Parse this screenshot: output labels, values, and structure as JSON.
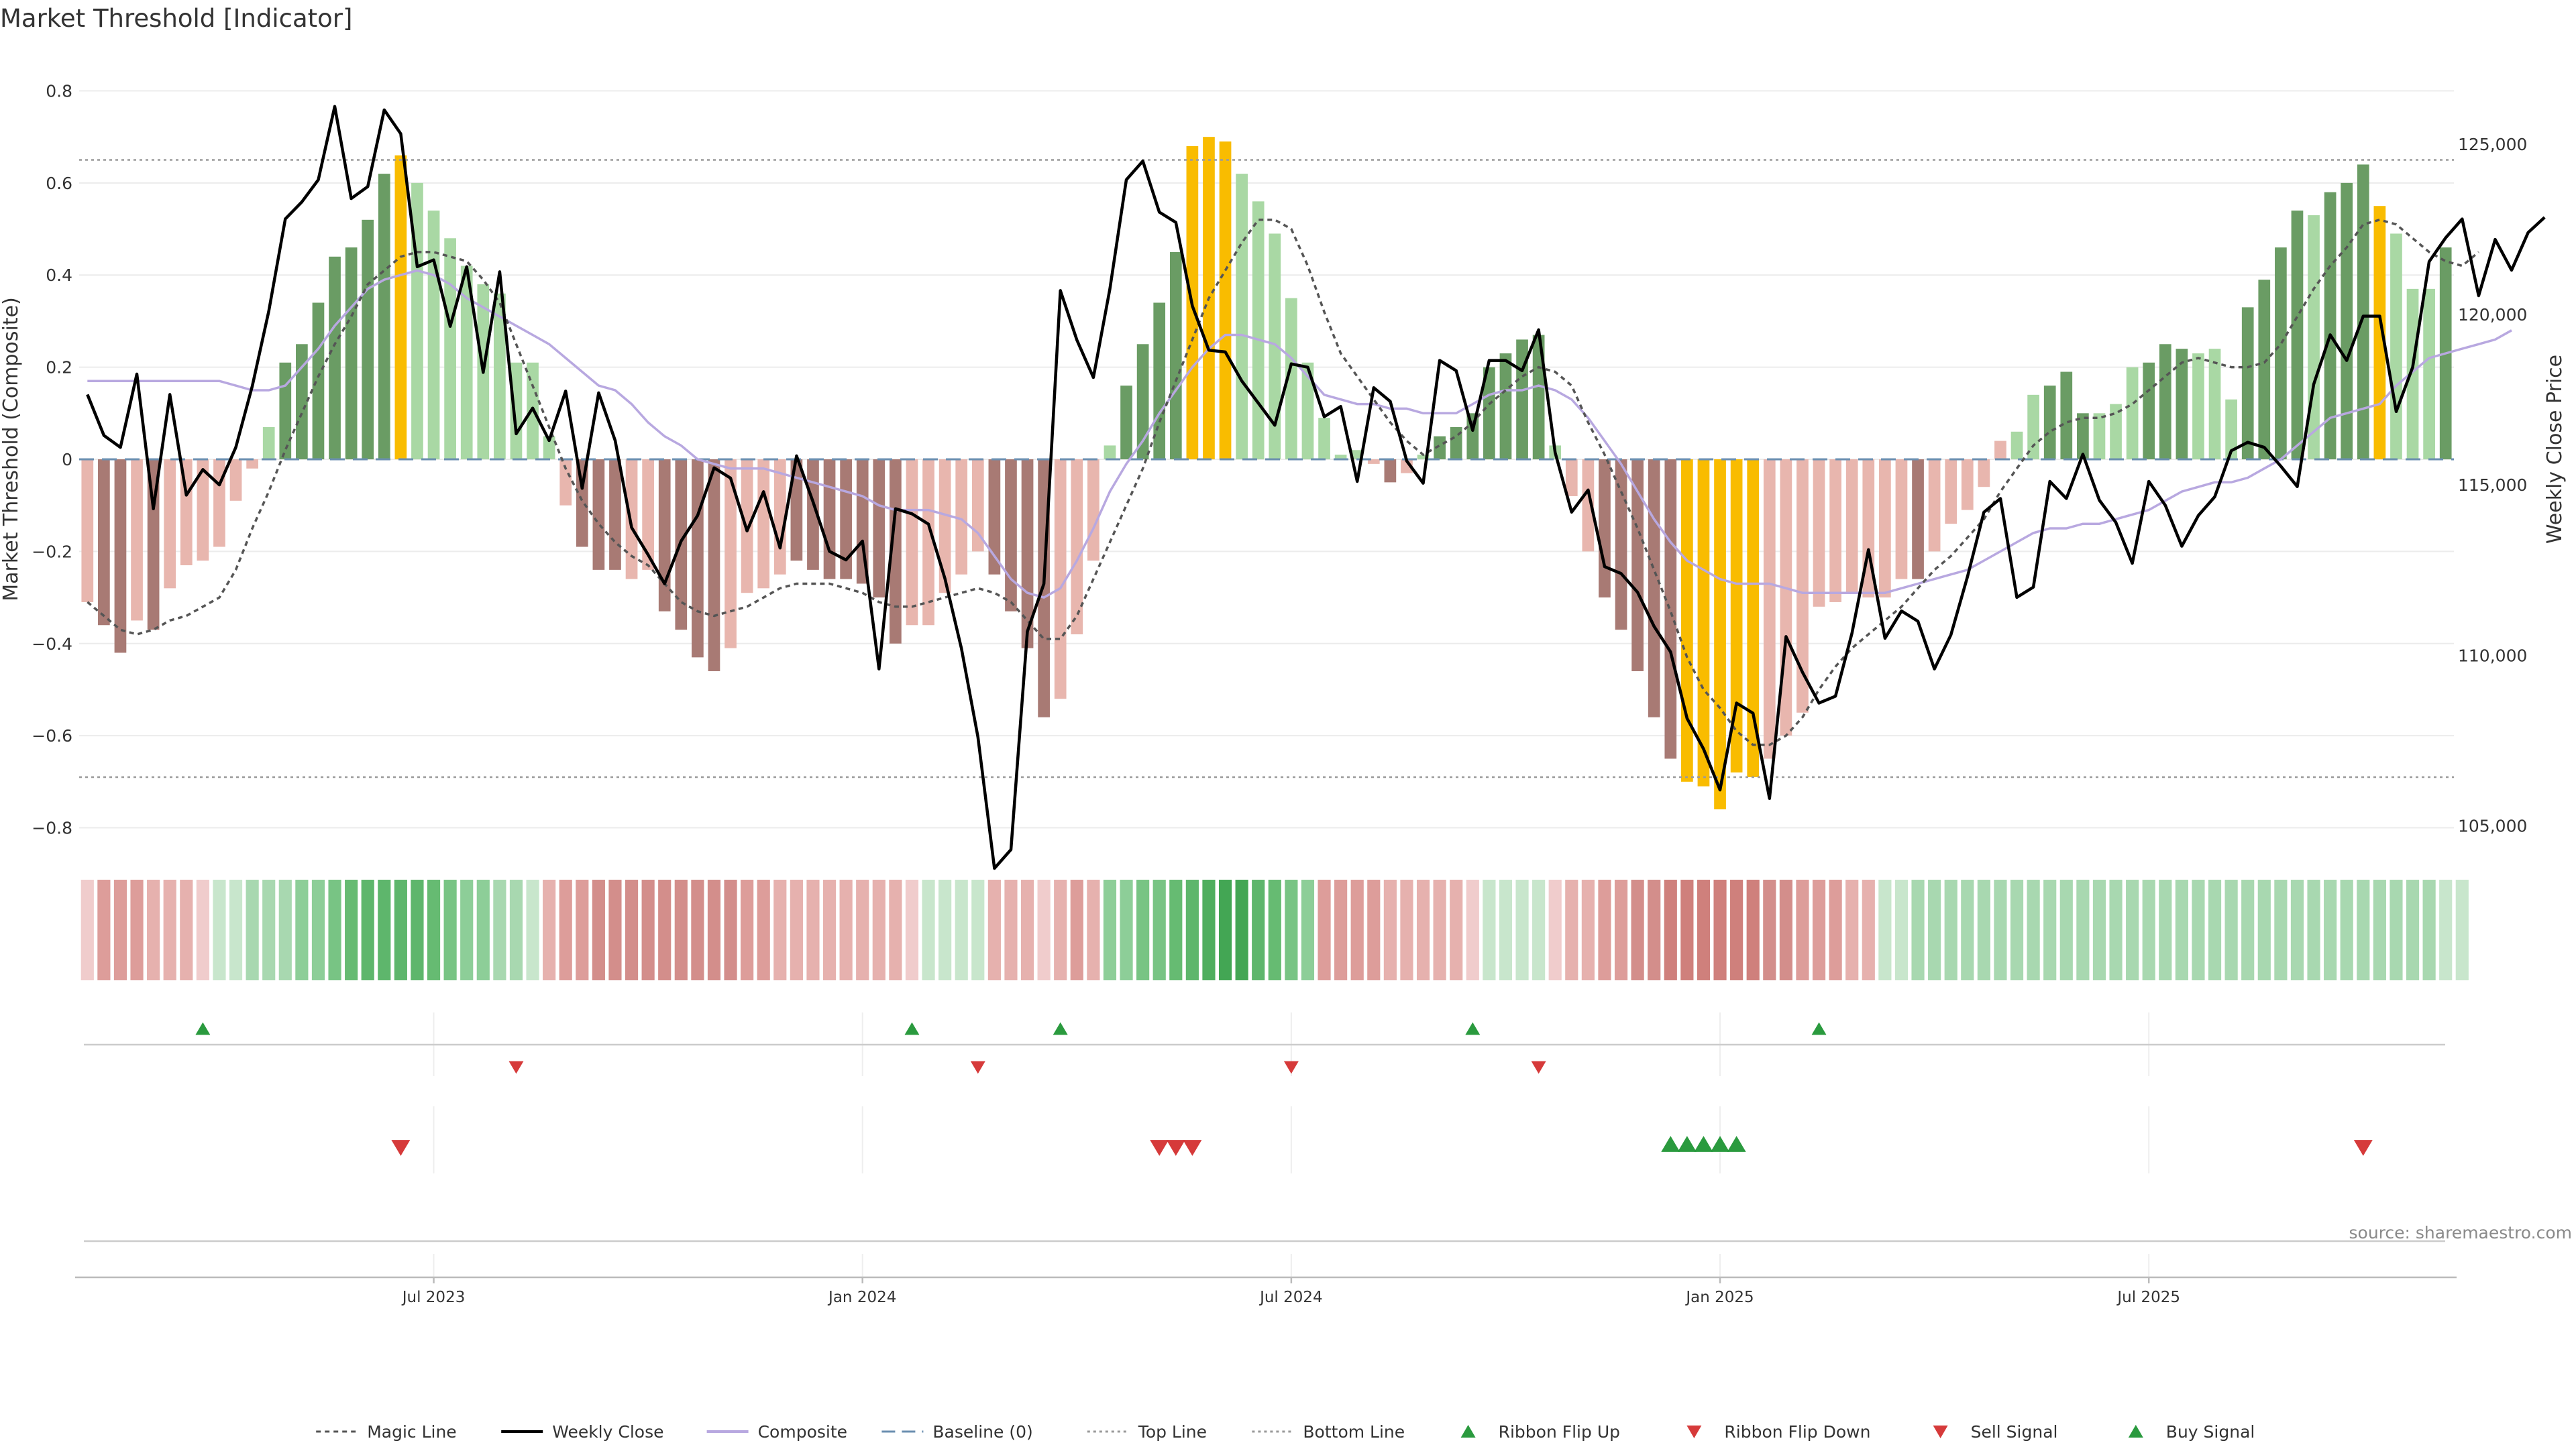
{
  "title": "Market Threshold [Indicator]",
  "source": "source: sharemaestro.com",
  "chart_data": {
    "type": "bar",
    "ylabel_left": "Market Threshold (Composite)",
    "ylabel_right": "Weekly Close Price",
    "ylim_left": [
      -0.84,
      0.84
    ],
    "ylim_right": [
      104400,
      127100
    ],
    "yticks_left": [
      0.8,
      0.6,
      0.4,
      0.2,
      0,
      -0.2,
      -0.4,
      -0.6,
      -0.8
    ],
    "yticks_left_labels": [
      "0.8",
      "0.6",
      "0.4",
      "0.2",
      "0",
      "−0.2",
      "−0.4",
      "−0.6",
      "−0.8"
    ],
    "yticks_right": [
      125000,
      120000,
      115000,
      110000,
      105000
    ],
    "yticks_right_labels": [
      "125,000",
      "120,000",
      "115,000",
      "110,000",
      "105,000"
    ],
    "x_ticks": [
      "Jul 2023",
      "Jan 2024",
      "Jul 2024",
      "Jan 2025",
      "Jul 2025"
    ],
    "top_line": 0.65,
    "bottom_line": -0.69,
    "grid": true,
    "legend_position": "bottom-center",
    "composite": [
      -0.31,
      -0.36,
      -0.42,
      -0.35,
      -0.37,
      -0.28,
      -0.23,
      -0.22,
      -0.19,
      -0.09,
      -0.02,
      0.07,
      0.21,
      0.25,
      0.34,
      0.44,
      0.46,
      0.52,
      0.62,
      0.66,
      0.6,
      0.54,
      0.48,
      0.42,
      0.38,
      0.36,
      0.21,
      0.21,
      0.05,
      -0.1,
      -0.19,
      -0.24,
      -0.24,
      -0.26,
      -0.24,
      -0.33,
      -0.37,
      -0.43,
      -0.46,
      -0.41,
      -0.29,
      -0.28,
      -0.25,
      -0.22,
      -0.24,
      -0.26,
      -0.26,
      -0.27,
      -0.3,
      -0.4,
      -0.36,
      -0.36,
      -0.29,
      -0.25,
      -0.2,
      -0.25,
      -0.33,
      -0.41,
      -0.56,
      -0.52,
      -0.38,
      -0.22,
      0.03,
      0.16,
      0.25,
      0.34,
      0.45,
      0.68,
      0.7,
      0.69,
      0.62,
      0.56,
      0.49,
      0.35,
      0.21,
      0.09,
      0.01,
      0.02,
      -0.01,
      -0.05,
      -0.03,
      0.01,
      0.05,
      0.07,
      0.1,
      0.2,
      0.23,
      0.26,
      0.27,
      0.03,
      -0.08,
      -0.2,
      -0.3,
      -0.37,
      -0.46,
      -0.56,
      -0.65,
      -0.7,
      -0.71,
      -0.76,
      -0.68,
      -0.69,
      -0.65,
      -0.6,
      -0.55,
      -0.32,
      -0.31,
      -0.29,
      -0.3,
      -0.3,
      -0.26,
      -0.26,
      -0.2,
      -0.14,
      -0.11,
      -0.06,
      0.04,
      0.06,
      0.14,
      0.16,
      0.19,
      0.1,
      0.1,
      0.12,
      0.2,
      0.21,
      0.25,
      0.24,
      0.23,
      0.24,
      0.13,
      0.33,
      0.39,
      0.46,
      0.54,
      0.53,
      0.58,
      0.6,
      0.64,
      0.55,
      0.49,
      0.37,
      0.37,
      0.46
    ],
    "bar_colors": [
      "#e8b6ae",
      "#a87a74",
      "#a87a74",
      "#e8b6ae",
      "#a87a74",
      "#e8b6ae",
      "#e8b6ae",
      "#e8b6ae",
      "#e8b6ae",
      "#e8b6ae",
      "#e8b6ae",
      "#a9d8a4",
      "#6a9c64",
      "#6a9c64",
      "#6a9c64",
      "#6a9c64",
      "#6a9c64",
      "#6a9c64",
      "#6a9c64",
      "#f9bc00",
      "#a9d8a4",
      "#a9d8a4",
      "#a9d8a4",
      "#a9d8a4",
      "#a9d8a4",
      "#a9d8a4",
      "#a9d8a4",
      "#a9d8a4",
      "#a9d8a4",
      "#e8b6ae",
      "#a87a74",
      "#a87a74",
      "#a87a74",
      "#e8b6ae",
      "#e8b6ae",
      "#a87a74",
      "#a87a74",
      "#a87a74",
      "#a87a74",
      "#e8b6ae",
      "#e8b6ae",
      "#e8b6ae",
      "#e8b6ae",
      "#a87a74",
      "#a87a74",
      "#a87a74",
      "#a87a74",
      "#a87a74",
      "#a87a74",
      "#a87a74",
      "#e8b6ae",
      "#e8b6ae",
      "#e8b6ae",
      "#e8b6ae",
      "#e8b6ae",
      "#a87a74",
      "#a87a74",
      "#a87a74",
      "#a87a74",
      "#e8b6ae",
      "#e8b6ae",
      "#e8b6ae",
      "#a9d8a4",
      "#6a9c64",
      "#6a9c64",
      "#6a9c64",
      "#6a9c64",
      "#f9bc00",
      "#f9bc00",
      "#f9bc00",
      "#a9d8a4",
      "#a9d8a4",
      "#a9d8a4",
      "#a9d8a4",
      "#a9d8a4",
      "#a9d8a4",
      "#a9d8a4",
      "#a9d8a4",
      "#e8b6ae",
      "#a87a74",
      "#e8b6ae",
      "#a9d8a4",
      "#6a9c64",
      "#6a9c64",
      "#6a9c64",
      "#6a9c64",
      "#6a9c64",
      "#6a9c64",
      "#6a9c64",
      "#a9d8a4",
      "#e8b6ae",
      "#e8b6ae",
      "#a87a74",
      "#a87a74",
      "#a87a74",
      "#a87a74",
      "#a87a74",
      "#f9bc00",
      "#f9bc00",
      "#f9bc00",
      "#f9bc00",
      "#f9bc00",
      "#e8b6ae",
      "#e8b6ae",
      "#e8b6ae",
      "#e8b6ae",
      "#e8b6ae",
      "#e8b6ae",
      "#e8b6ae",
      "#e8b6ae",
      "#e8b6ae",
      "#a87a74",
      "#e8b6ae",
      "#e8b6ae",
      "#e8b6ae",
      "#e8b6ae",
      "#e8b6ae",
      "#a9d8a4",
      "#a9d8a4",
      "#6a9c64",
      "#6a9c64",
      "#6a9c64",
      "#a9d8a4",
      "#a9d8a4",
      "#a9d8a4",
      "#6a9c64",
      "#6a9c64",
      "#6a9c64",
      "#a9d8a4",
      "#a9d8a4",
      "#a9d8a4",
      "#6a9c64",
      "#6a9c64",
      "#6a9c64",
      "#6a9c64",
      "#a9d8a4",
      "#6a9c64",
      "#6a9c64",
      "#6a9c64",
      "#f9bc00",
      "#a9d8a4",
      "#a9d8a4",
      "#a9d8a4",
      "#6a9c64",
      "#6a9c64"
    ],
    "weekly_close": [
      117650,
      116450,
      116100,
      118250,
      114300,
      117650,
      114700,
      115450,
      115000,
      116100,
      117900,
      120100,
      122800,
      123300,
      123950,
      126100,
      123400,
      123750,
      126000,
      125300,
      121400,
      121600,
      119650,
      121400,
      118300,
      121250,
      116500,
      117250,
      116300,
      117750,
      114900,
      117700,
      116300,
      113750,
      112950,
      112100,
      113350,
      114100,
      115500,
      115200,
      113650,
      114800,
      113150,
      115850,
      114500,
      113050,
      112800,
      113350,
      109600,
      114300,
      114150,
      113850,
      112250,
      110200,
      107600,
      103750,
      104300,
      110700,
      112100,
      120700,
      119250,
      118150,
      120750,
      123950,
      124500,
      123000,
      122700,
      120250,
      118950,
      118900,
      118050,
      117400,
      116750,
      118550,
      118450,
      117000,
      117300,
      115100,
      117850,
      117450,
      115700,
      115050,
      118650,
      118350,
      116600,
      118650,
      118650,
      118350,
      119550,
      115950,
      114200,
      114850,
      112600,
      112400,
      111850,
      110850,
      110100,
      108150,
      107250,
      106050,
      108600,
      108300,
      105800,
      110550,
      109500,
      108600,
      108800,
      110650,
      113100,
      110500,
      111300,
      111000,
      109600,
      110600,
      112300,
      114200,
      114600,
      111700,
      112000,
      115100,
      114600,
      115900,
      114550,
      113900,
      112700,
      115100,
      114400,
      113200,
      114100,
      114650,
      116000,
      116250,
      116100,
      115550,
      114950,
      117950,
      119400,
      118650,
      119950,
      119950,
      117150,
      118450,
      121550,
      122250,
      122800,
      120550,
      122200,
      121300,
      122400,
      122850
    ],
    "magic_line": [
      -0.31,
      -0.34,
      -0.37,
      -0.38,
      -0.37,
      -0.35,
      -0.34,
      -0.32,
      -0.3,
      -0.24,
      -0.15,
      -0.07,
      0.02,
      0.1,
      0.18,
      0.25,
      0.31,
      0.38,
      0.41,
      0.44,
      0.45,
      0.45,
      0.44,
      0.43,
      0.39,
      0.34,
      0.25,
      0.16,
      0.07,
      -0.02,
      -0.09,
      -0.14,
      -0.18,
      -0.21,
      -0.23,
      -0.27,
      -0.31,
      -0.33,
      -0.34,
      -0.33,
      -0.32,
      -0.3,
      -0.28,
      -0.27,
      -0.27,
      -0.27,
      -0.28,
      -0.29,
      -0.31,
      -0.32,
      -0.32,
      -0.31,
      -0.3,
      -0.29,
      -0.28,
      -0.29,
      -0.31,
      -0.35,
      -0.39,
      -0.39,
      -0.34,
      -0.26,
      -0.18,
      -0.1,
      -0.02,
      0.08,
      0.17,
      0.26,
      0.35,
      0.41,
      0.47,
      0.52,
      0.52,
      0.5,
      0.42,
      0.32,
      0.23,
      0.18,
      0.13,
      0.08,
      0.04,
      0.01,
      0.03,
      0.05,
      0.08,
      0.12,
      0.15,
      0.18,
      0.2,
      0.19,
      0.16,
      0.08,
      0.01,
      -0.07,
      -0.15,
      -0.24,
      -0.33,
      -0.43,
      -0.5,
      -0.54,
      -0.59,
      -0.62,
      -0.62,
      -0.6,
      -0.56,
      -0.5,
      -0.45,
      -0.41,
      -0.38,
      -0.35,
      -0.32,
      -0.28,
      -0.24,
      -0.21,
      -0.17,
      -0.13,
      -0.07,
      -0.02,
      0.03,
      0.06,
      0.08,
      0.09,
      0.09,
      0.1,
      0.12,
      0.15,
      0.18,
      0.21,
      0.22,
      0.21,
      0.2,
      0.2,
      0.21,
      0.25,
      0.31,
      0.37,
      0.42,
      0.46,
      0.51,
      0.52,
      0.51,
      0.48,
      0.45,
      0.43,
      0.42,
      0.45
    ],
    "composite_line": [
      0.17,
      0.17,
      0.17,
      0.17,
      0.17,
      0.17,
      0.17,
      0.17,
      0.17,
      0.16,
      0.15,
      0.15,
      0.16,
      0.2,
      0.24,
      0.29,
      0.33,
      0.37,
      0.39,
      0.4,
      0.41,
      0.4,
      0.38,
      0.35,
      0.33,
      0.31,
      0.29,
      0.27,
      0.25,
      0.22,
      0.19,
      0.16,
      0.15,
      0.12,
      0.08,
      0.05,
      0.03,
      0.0,
      -0.01,
      -0.02,
      -0.02,
      -0.02,
      -0.03,
      -0.04,
      -0.05,
      -0.06,
      -0.07,
      -0.08,
      -0.1,
      -0.11,
      -0.11,
      -0.11,
      -0.12,
      -0.13,
      -0.16,
      -0.21,
      -0.26,
      -0.29,
      -0.3,
      -0.28,
      -0.22,
      -0.15,
      -0.07,
      -0.01,
      0.04,
      0.1,
      0.15,
      0.2,
      0.24,
      0.27,
      0.27,
      0.26,
      0.25,
      0.22,
      0.18,
      0.14,
      0.13,
      0.12,
      0.12,
      0.11,
      0.11,
      0.1,
      0.1,
      0.1,
      0.12,
      0.14,
      0.15,
      0.15,
      0.16,
      0.15,
      0.13,
      0.09,
      0.04,
      -0.01,
      -0.07,
      -0.13,
      -0.18,
      -0.22,
      -0.24,
      -0.26,
      -0.27,
      -0.27,
      -0.27,
      -0.28,
      -0.29,
      -0.29,
      -0.29,
      -0.29,
      -0.29,
      -0.29,
      -0.28,
      -0.27,
      -0.26,
      -0.25,
      -0.24,
      -0.22,
      -0.2,
      -0.18,
      -0.16,
      -0.15,
      -0.15,
      -0.14,
      -0.14,
      -0.13,
      -0.12,
      -0.11,
      -0.09,
      -0.07,
      -0.06,
      -0.05,
      -0.05,
      -0.04,
      -0.02,
      0.0,
      0.03,
      0.06,
      0.09,
      0.1,
      0.11,
      0.12,
      0.16,
      0.19,
      0.22,
      0.23,
      0.24,
      0.25,
      0.26,
      0.28
    ],
    "ribbon_colors": [
      "#f0cccc",
      "#dd9d9a",
      "#dd9d9a",
      "#dd9d9a",
      "#e6b1ae",
      "#e6b1ae",
      "#e6b1ae",
      "#f0cccc",
      "#c8e6cc",
      "#c8e6cc",
      "#a8d8b0",
      "#a8d8b0",
      "#a8d8b0",
      "#8dce98",
      "#8dce98",
      "#78c484",
      "#66bb72",
      "#5eb66c",
      "#5eb66c",
      "#5eb66c",
      "#5eb66c",
      "#66bb72",
      "#78c484",
      "#8dce98",
      "#8dce98",
      "#a8d8b0",
      "#a8d8b0",
      "#c8e6cc",
      "#e6b1ae",
      "#dd9d9a",
      "#dd9d9a",
      "#d38e8b",
      "#d38e8b",
      "#d38e8b",
      "#d38e8b",
      "#d38e8b",
      "#d38e8b",
      "#d38e8b",
      "#d38e8b",
      "#d38e8b",
      "#dd9d9a",
      "#dd9d9a",
      "#e6b1ae",
      "#e6b1ae",
      "#e6b1ae",
      "#e6b1ae",
      "#e6b1ae",
      "#e6b1ae",
      "#e6b1ae",
      "#e6b1ae",
      "#f0cccc",
      "#c8e6cc",
      "#c8e6cc",
      "#c8e6cc",
      "#c8e6cc",
      "#e6b1ae",
      "#e6b1ae",
      "#e6b1ae",
      "#f0cccc",
      "#e6b1ae",
      "#dd9d9a",
      "#e6b1ae",
      "#8dce98",
      "#8dce98",
      "#78c484",
      "#78c484",
      "#66bb72",
      "#5eb66c",
      "#4fae5e",
      "#43a654",
      "#43a654",
      "#5eb66c",
      "#66bb72",
      "#78c484",
      "#8dce98",
      "#dd9d9a",
      "#dd9d9a",
      "#dd9d9a",
      "#dd9d9a",
      "#e6b1ae",
      "#e6b1ae",
      "#e6b1ae",
      "#e6b1ae",
      "#e6b1ae",
      "#f0cccc",
      "#c8e6cc",
      "#c8e6cc",
      "#c8e6cc",
      "#c8e6cc",
      "#f0cccc",
      "#e6b1ae",
      "#e6b1ae",
      "#dd9d9a",
      "#dd9d9a",
      "#d38e8b",
      "#d38e8b",
      "#cf807c",
      "#cf807c",
      "#cf807c",
      "#cf807c",
      "#cf807c",
      "#cf807c",
      "#d38e8b",
      "#d38e8b",
      "#dd9d9a",
      "#dd9d9a",
      "#dd9d9a",
      "#e6b1ae",
      "#e6b1ae",
      "#c8e6cc",
      "#c8e6cc",
      "#a8d8b0",
      "#a8d8b0",
      "#a8d8b0",
      "#a8d8b0",
      "#a8d8b0",
      "#a8d8b0",
      "#a8d8b0",
      "#a8d8b0",
      "#a8d8b0",
      "#a8d8b0",
      "#a8d8b0",
      "#a8d8b0",
      "#a8d8b0",
      "#a8d8b0",
      "#a8d8b0",
      "#a8d8b0",
      "#a8d8b0",
      "#a8d8b0",
      "#a8d8b0",
      "#a8d8b0",
      "#a8d8b0",
      "#a8d8b0",
      "#a8d8b0",
      "#a8d8b0",
      "#a8d8b0",
      "#a8d8b0",
      "#a8d8b0",
      "#a8d8b0",
      "#a8d8b0",
      "#a8d8b0",
      "#a8d8b0",
      "#a8d8b0",
      "#c8e6cc",
      "#c8e6cc"
    ],
    "ribbon_flip_up": [
      7,
      50,
      59,
      84,
      105
    ],
    "ribbon_flip_down": [
      26,
      54,
      73,
      88
    ],
    "sell_signal": [
      19,
      65,
      66,
      67,
      138
    ],
    "buy_signal": [
      96,
      97,
      98,
      99,
      100
    ]
  },
  "colors": {
    "strong_green": "#6a9c64",
    "light_green": "#a9d8a4",
    "strong_red": "#a87a74",
    "light_red": "#e8b6ae",
    "extreme": "#f9bc00",
    "composite_line": "#b8a8e0",
    "baseline": "#6b8fb0",
    "flip_up": "#2a9a3e",
    "flip_down": "#d63a3a"
  },
  "legend": [
    {
      "label": "Magic Line",
      "symbol": "dotted-line",
      "color": "#555555"
    },
    {
      "label": "Weekly Close",
      "symbol": "solid-line",
      "color": "#000000"
    },
    {
      "label": "Composite",
      "symbol": "solid-line",
      "color": "#b8a8e0"
    },
    {
      "label": "Baseline (0)",
      "symbol": "dashed-line",
      "color": "#6b8fb0"
    },
    {
      "label": "Top Line",
      "symbol": "fine-dotted-line",
      "color": "#999999"
    },
    {
      "label": "Bottom Line",
      "symbol": "fine-dotted-line",
      "color": "#999999"
    },
    {
      "label": "Ribbon Flip Up",
      "symbol": "triangle-up",
      "color": "#2a9a3e"
    },
    {
      "label": "Ribbon Flip Down",
      "symbol": "triangle-down",
      "color": "#d63a3a"
    },
    {
      "label": "Sell Signal",
      "symbol": "triangle-down",
      "color": "#d63a3a"
    },
    {
      "label": "Buy Signal",
      "symbol": "triangle-up",
      "color": "#2a9a3e"
    }
  ]
}
